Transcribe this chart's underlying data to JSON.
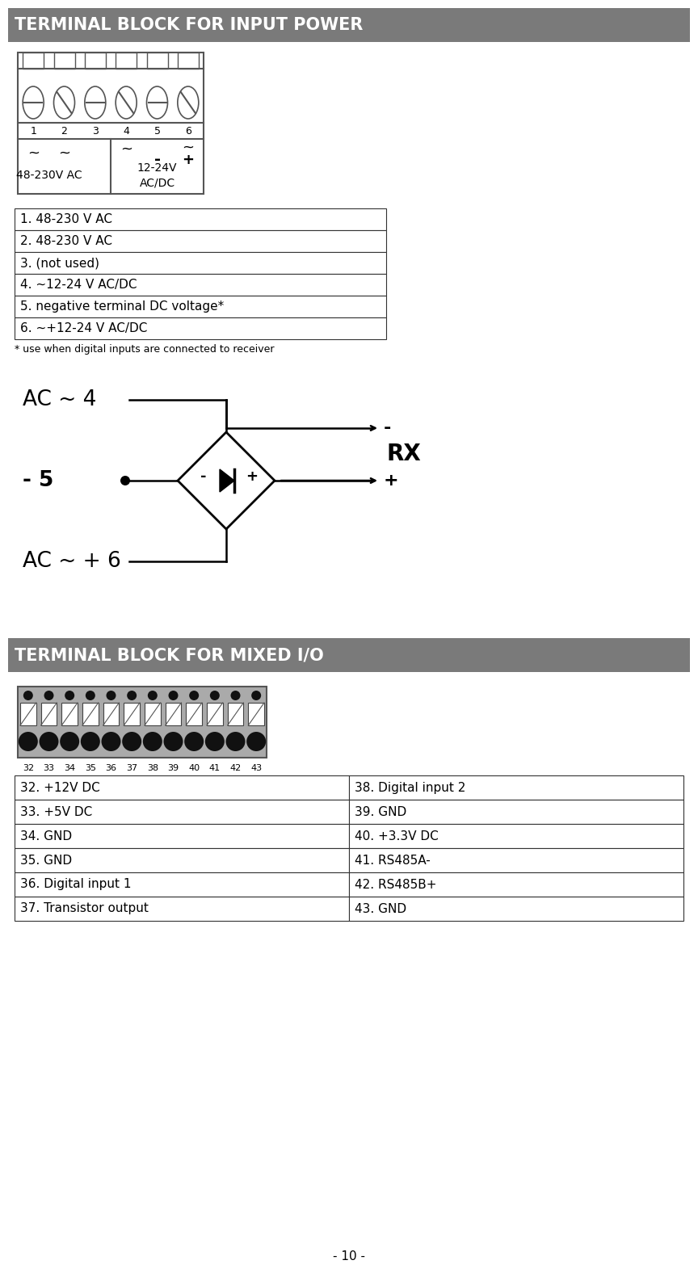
{
  "title1": "TERMINAL BLOCK FOR INPUT POWER",
  "title2": "TERMINAL BLOCK FOR MIXED I/O",
  "header_bg": "#7a7a7a",
  "header_text_color": "#ffffff",
  "header_fontsize": 15,
  "bg_color": "#ffffff",
  "table1_rows": [
    "1. 48-230 V AC",
    "2. 48-230 V AC",
    "3. (not used)",
    "4. ~12-24 V AC/DC",
    "5. negative terminal DC voltage*",
    "6. ~+12-24 V AC/DC"
  ],
  "footnote1": "* use when digital inputs are connected to receiver",
  "table2_left": [
    "32. +12V DC",
    "33. +5V DC",
    "34. GND",
    "35. GND",
    "36. Digital input 1",
    "37. Transistor output"
  ],
  "table2_right": [
    "38. Digital input 2",
    "39. GND",
    "40. +3.3V DC",
    "41. RS485A-",
    "42. RS485B+",
    "43. GND"
  ],
  "page_number": "- 10 -",
  "terminal_numbers_1": [
    "1",
    "2",
    "3",
    "4",
    "5",
    "6"
  ],
  "terminal_numbers_2": [
    "32",
    "33",
    "34",
    "35",
    "36",
    "37",
    "38",
    "39",
    "40",
    "41",
    "42",
    "43"
  ],
  "table_font_size": 11,
  "footnote_font_size": 9,
  "label_ac_48230": "48-230V AC",
  "label_1224_acdc": "12-24V\nAC/DC",
  "diag_label_ac4": "AC ~ 4",
  "diag_label_5": "- 5",
  "diag_label_ac6": "AC ~ + 6",
  "diag_label_rx": "RX",
  "diag_label_minus": "-",
  "diag_label_plus": "+"
}
